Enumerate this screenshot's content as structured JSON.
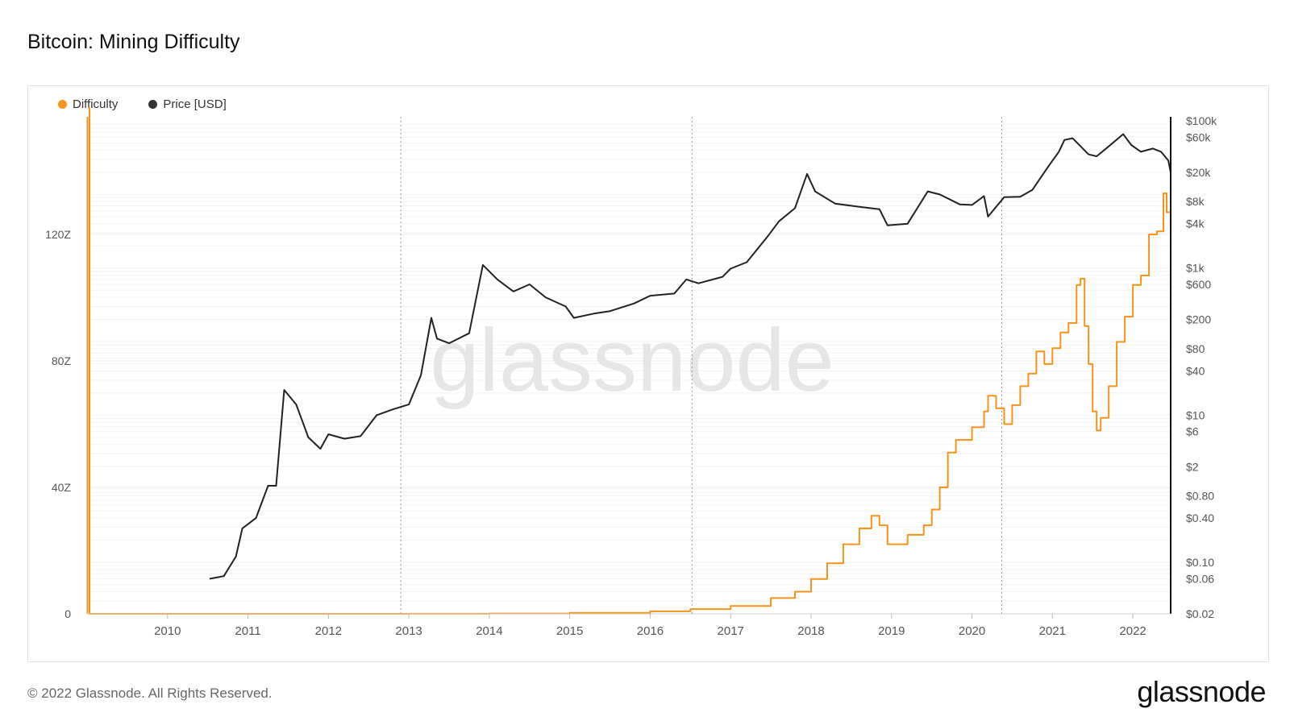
{
  "header": {
    "title": "Bitcoin: Mining Difficulty"
  },
  "footer": {
    "copyright": "© 2022 Glassnode. All Rights Reserved.",
    "brand": "glassnode"
  },
  "watermark": "glassnode",
  "colors": {
    "difficulty": "#f7931a",
    "price": "#222222",
    "grid": "#ececec",
    "axis_text": "#555555",
    "watermark": "#e6e6e6"
  },
  "chart_data": {
    "type": "line",
    "title": "Bitcoin: Mining Difficulty",
    "legend": {
      "placement": "top-left",
      "entries": [
        "Difficulty",
        "Price [USD]"
      ]
    },
    "x_axis": {
      "ticks": [
        "2010",
        "2011",
        "2012",
        "2013",
        "2014",
        "2015",
        "2016",
        "2017",
        "2018",
        "2019",
        "2020",
        "2021",
        "2022"
      ],
      "range": [
        2009.0,
        2022.47
      ]
    },
    "y_left": {
      "ticks": [
        "0",
        "40Z",
        "80Z",
        "120Z"
      ],
      "range": [
        0,
        160
      ],
      "unit": "Z"
    },
    "y_right": {
      "scale": "log",
      "ticks": [
        "$100k",
        "$60k",
        "$20k",
        "$8k",
        "$4k",
        "$1k",
        "$600",
        "$200",
        "$80",
        "$40",
        "$10",
        "$6",
        "$2",
        "$0.80",
        "$0.40",
        "$0.10",
        "$0.06",
        "$0.02"
      ],
      "range": [
        0.02,
        100000
      ]
    },
    "vertical_markers": [
      2012.9,
      2016.52,
      2020.37
    ],
    "series": [
      {
        "name": "Difficulty",
        "axis": "left",
        "points": [
          [
            2009.02,
            160
          ],
          [
            2009.03,
            0
          ],
          [
            2012.0,
            0.01
          ],
          [
            2013.0,
            0.02
          ],
          [
            2014.0,
            0.1
          ],
          [
            2015.0,
            0.3
          ],
          [
            2016.0,
            0.8
          ],
          [
            2016.5,
            1.5
          ],
          [
            2017.0,
            2.5
          ],
          [
            2017.5,
            5
          ],
          [
            2017.8,
            7
          ],
          [
            2018.0,
            11
          ],
          [
            2018.2,
            16
          ],
          [
            2018.4,
            22
          ],
          [
            2018.6,
            27
          ],
          [
            2018.75,
            31
          ],
          [
            2018.85,
            28
          ],
          [
            2018.95,
            22
          ],
          [
            2019.0,
            22
          ],
          [
            2019.2,
            25
          ],
          [
            2019.4,
            28
          ],
          [
            2019.5,
            33
          ],
          [
            2019.6,
            40
          ],
          [
            2019.7,
            51
          ],
          [
            2019.8,
            55
          ],
          [
            2020.0,
            59
          ],
          [
            2020.15,
            64
          ],
          [
            2020.2,
            69
          ],
          [
            2020.3,
            65
          ],
          [
            2020.4,
            60
          ],
          [
            2020.45,
            60
          ],
          [
            2020.5,
            66
          ],
          [
            2020.6,
            72
          ],
          [
            2020.7,
            76
          ],
          [
            2020.8,
            83
          ],
          [
            2020.9,
            79
          ],
          [
            2021.0,
            84
          ],
          [
            2021.1,
            89
          ],
          [
            2021.2,
            92
          ],
          [
            2021.3,
            104
          ],
          [
            2021.35,
            106
          ],
          [
            2021.4,
            91
          ],
          [
            2021.45,
            79
          ],
          [
            2021.5,
            64
          ],
          [
            2021.55,
            58
          ],
          [
            2021.6,
            62
          ],
          [
            2021.7,
            72
          ],
          [
            2021.8,
            86
          ],
          [
            2021.9,
            94
          ],
          [
            2022.0,
            104
          ],
          [
            2022.1,
            107
          ],
          [
            2022.2,
            120
          ],
          [
            2022.3,
            121
          ],
          [
            2022.38,
            133
          ],
          [
            2022.42,
            127
          ],
          [
            2022.47,
            128
          ]
        ]
      },
      {
        "name": "Price [USD]",
        "axis": "right",
        "points": [
          [
            2010.53,
            0.06
          ],
          [
            2010.7,
            0.065
          ],
          [
            2010.85,
            0.12
          ],
          [
            2010.93,
            0.29
          ],
          [
            2011.1,
            0.4
          ],
          [
            2011.25,
            1.1
          ],
          [
            2011.35,
            1.1
          ],
          [
            2011.45,
            22
          ],
          [
            2011.6,
            14
          ],
          [
            2011.75,
            5
          ],
          [
            2011.9,
            3.5
          ],
          [
            2012.0,
            5.5
          ],
          [
            2012.2,
            4.8
          ],
          [
            2012.4,
            5.2
          ],
          [
            2012.6,
            10
          ],
          [
            2012.8,
            12
          ],
          [
            2013.0,
            14
          ],
          [
            2013.15,
            35
          ],
          [
            2013.28,
            210
          ],
          [
            2013.35,
            110
          ],
          [
            2013.5,
            95
          ],
          [
            2013.75,
            130
          ],
          [
            2013.92,
            1100
          ],
          [
            2014.1,
            700
          ],
          [
            2014.3,
            480
          ],
          [
            2014.5,
            600
          ],
          [
            2014.7,
            400
          ],
          [
            2014.95,
            300
          ],
          [
            2015.05,
            210
          ],
          [
            2015.3,
            240
          ],
          [
            2015.5,
            260
          ],
          [
            2015.8,
            330
          ],
          [
            2016.0,
            420
          ],
          [
            2016.3,
            450
          ],
          [
            2016.45,
            700
          ],
          [
            2016.6,
            620
          ],
          [
            2016.9,
            760
          ],
          [
            2017.0,
            980
          ],
          [
            2017.2,
            1200
          ],
          [
            2017.45,
            2600
          ],
          [
            2017.6,
            4300
          ],
          [
            2017.8,
            6500
          ],
          [
            2017.95,
            19000
          ],
          [
            2018.05,
            11000
          ],
          [
            2018.3,
            7500
          ],
          [
            2018.6,
            6800
          ],
          [
            2018.85,
            6300
          ],
          [
            2018.95,
            3800
          ],
          [
            2019.2,
            4000
          ],
          [
            2019.45,
            11000
          ],
          [
            2019.6,
            10000
          ],
          [
            2019.85,
            7300
          ],
          [
            2020.0,
            7200
          ],
          [
            2020.15,
            9500
          ],
          [
            2020.2,
            5000
          ],
          [
            2020.4,
            9200
          ],
          [
            2020.6,
            9300
          ],
          [
            2020.75,
            11500
          ],
          [
            2020.95,
            24000
          ],
          [
            2021.08,
            38000
          ],
          [
            2021.15,
            55000
          ],
          [
            2021.25,
            58000
          ],
          [
            2021.45,
            35000
          ],
          [
            2021.55,
            33000
          ],
          [
            2021.7,
            45000
          ],
          [
            2021.88,
            66000
          ],
          [
            2021.98,
            47000
          ],
          [
            2022.1,
            38000
          ],
          [
            2022.25,
            42000
          ],
          [
            2022.35,
            38000
          ],
          [
            2022.44,
            29000
          ],
          [
            2022.47,
            20000
          ]
        ]
      }
    ]
  }
}
